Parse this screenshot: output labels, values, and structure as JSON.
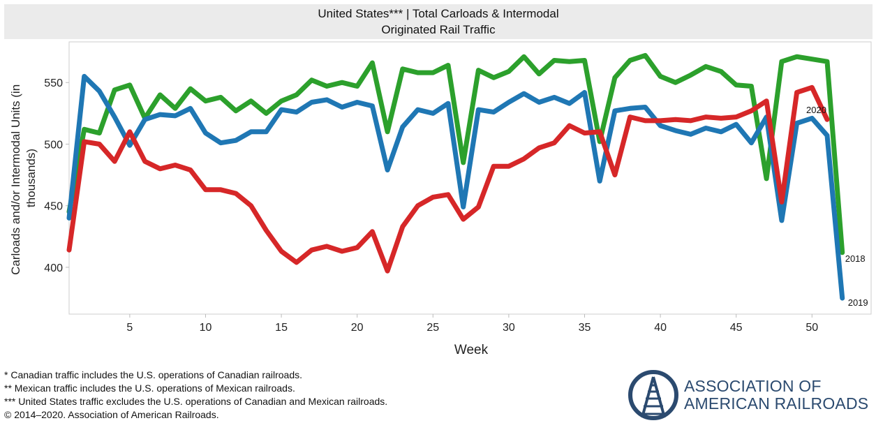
{
  "chart_data": {
    "type": "line",
    "title": "United States*** | Total Carloads & Intermodal",
    "subtitle": "Originated Rail Traffic",
    "xlabel": "Week",
    "ylabel": "Carloads and/or Intermodal Units (in thousands)",
    "xlim": [
      1,
      53.9
    ],
    "ylim": [
      362,
      583
    ],
    "xticks": [
      5,
      10,
      15,
      20,
      25,
      30,
      35,
      40,
      45,
      50
    ],
    "yticks": [
      400,
      450,
      500,
      550
    ],
    "grid": false,
    "legend": "end-of-line labels",
    "series": [
      {
        "name": "2018",
        "color": "#2ca02c",
        "values": [
          445,
          512,
          509,
          544,
          548,
          521,
          540,
          529,
          545,
          535,
          538,
          527,
          535,
          525,
          535,
          540,
          552,
          547,
          550,
          547,
          566,
          510,
          561,
          558,
          558,
          564,
          485,
          560,
          554,
          559,
          571,
          557,
          568,
          567,
          568,
          502,
          554,
          568,
          572,
          555,
          550,
          556,
          563,
          559,
          548,
          547,
          472,
          567,
          571,
          569,
          567,
          412
        ]
      },
      {
        "name": "2019",
        "color": "#1f77b4",
        "values": [
          440,
          555,
          543,
          522,
          499,
          520,
          524,
          523,
          529,
          509,
          501,
          503,
          510,
          510,
          528,
          526,
          534,
          536,
          530,
          534,
          531,
          479,
          514,
          528,
          525,
          533,
          449,
          528,
          526,
          534,
          541,
          534,
          538,
          533,
          542,
          470,
          527,
          529,
          530,
          515,
          511,
          508,
          513,
          510,
          516,
          501,
          522,
          438,
          517,
          521,
          507,
          375
        ]
      },
      {
        "name": "2020",
        "color": "#d62728",
        "values": [
          414,
          502,
          500,
          486,
          510,
          486,
          480,
          483,
          479,
          463,
          463,
          460,
          450,
          430,
          413,
          404,
          414,
          417,
          413,
          416,
          429,
          397,
          433,
          450,
          457,
          459,
          439,
          449,
          482,
          482,
          488,
          497,
          501,
          515,
          509,
          510,
          475,
          522,
          519,
          519,
          520,
          519,
          522,
          521,
          522,
          527,
          535,
          453,
          542,
          546,
          520
        ]
      }
    ]
  },
  "footnotes": [
    "* Canadian traffic includes the U.S. operations of Canadian railroads.",
    "** Mexican traffic includes the U.S. operations of Mexican railroads.",
    "*** United States traffic excludes the U.S. operations of Canadian and Mexican railroads.",
    "© 2014–2020. Association of American Railroads."
  ],
  "logo": {
    "line1": "ASSOCIATION OF",
    "line2": "AMERICAN RAILROADS",
    "color": "#2b4a6f"
  }
}
